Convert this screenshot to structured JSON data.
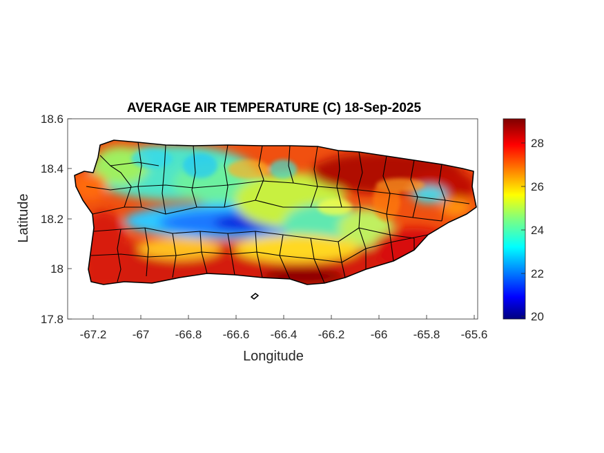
{
  "title": "AVERAGE AIR TEMPERATURE (C) 18-Sep-2025",
  "xlabel": "Longitude",
  "ylabel": "Latitude",
  "x_ticks": [
    "-67.2",
    "-67",
    "-66.8",
    "-66.6",
    "-66.4",
    "-66.2",
    "-66",
    "-65.8",
    "-65.6"
  ],
  "y_ticks": [
    "18.6",
    "18.4",
    "18.2",
    "18",
    "17.8"
  ],
  "colorbar": {
    "ticks": [
      "28",
      "26",
      "24",
      "22",
      "20"
    ],
    "min": 20,
    "max": 29.2,
    "colormap": "jet"
  },
  "map": {
    "xlim": [
      -67.3,
      -65.58
    ],
    "ylim": [
      17.8,
      18.6
    ],
    "region": "Puerto Rico",
    "variable": "average air temperature",
    "units": "C",
    "date": "18-Sep-2025"
  }
}
